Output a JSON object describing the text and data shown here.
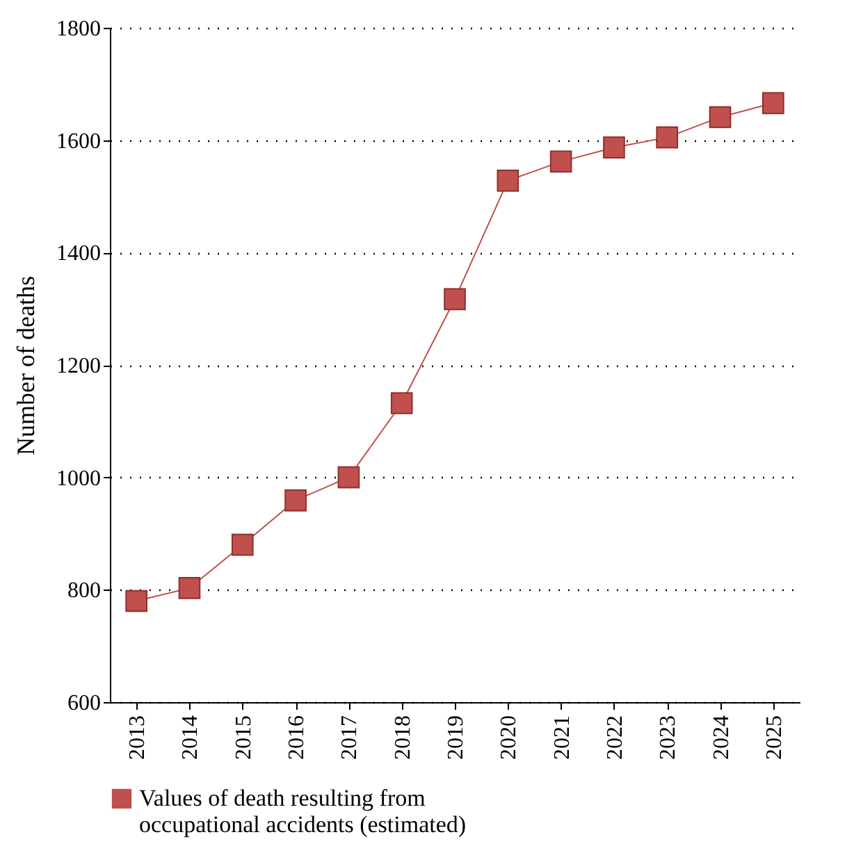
{
  "chart_data": {
    "type": "line",
    "ylabel": "Number of deaths",
    "categories": [
      "2013",
      "2014",
      "2015",
      "2016",
      "2017",
      "2018",
      "2019",
      "2020",
      "2021",
      "2022",
      "2023",
      "2024",
      "2025"
    ],
    "series": [
      {
        "name": "Values of death resulting from occupational accidents (estimated)",
        "color": "#c0504d",
        "values": [
          780,
          803,
          880,
          959,
          1000,
          1132,
          1317,
          1528,
          1562,
          1587,
          1605,
          1641,
          1666
        ]
      }
    ],
    "ylim": [
      600,
      1800
    ],
    "yticks": [
      600,
      800,
      1000,
      1200,
      1400,
      1600,
      1800
    ],
    "grid": "y",
    "legend": "bottom",
    "marker": "square",
    "line_style": "solid"
  }
}
